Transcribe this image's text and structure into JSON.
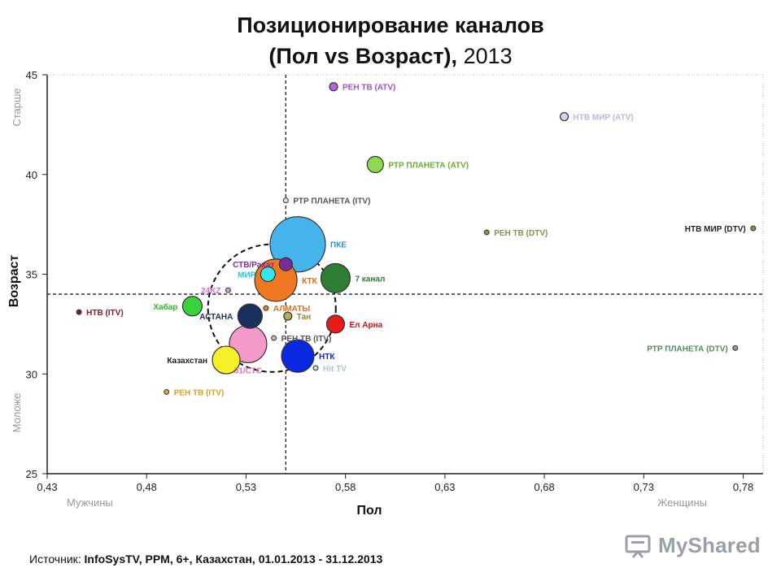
{
  "title": {
    "line1": "Позиционирование каналов",
    "line2": "(Пол vs Возраст),",
    "year": "2013"
  },
  "source": {
    "prefix": "Источник: ",
    "text": "InfoSysTV, PPM, 6+, Казахстан, 01.01.2013 - 31.12.2013"
  },
  "logo": {
    "text": "MyShared",
    "icon": "presentation-board-icon"
  },
  "chart_data": {
    "type": "scatter",
    "subtype": "bubble",
    "xlabel": "Пол",
    "ylabel": "Возраст",
    "xlim": [
      0.43,
      0.79
    ],
    "ylim": [
      25,
      45
    ],
    "xticks": [
      0.43,
      0.48,
      0.53,
      0.58,
      0.63,
      0.68,
      0.73,
      0.78
    ],
    "xtick_labels": [
      "0,43",
      "0,48",
      "0,53",
      "0,58",
      "0,63",
      "0,68",
      "0,73",
      "0,78"
    ],
    "yticks": [
      25,
      30,
      35,
      40,
      45
    ],
    "ytick_labels": [
      "25",
      "30",
      "35",
      "40",
      "45"
    ],
    "x_end_labels": {
      "left": "Мужчины",
      "right": "Женщины"
    },
    "y_end_labels": {
      "top": "Старше",
      "bottom": "Моложе"
    },
    "reference_lines": {
      "x": 0.55,
      "y": 34
    },
    "highlight_circle": {
      "cx": 0.543,
      "cy": 33.3,
      "r": 3.2,
      "style": "dashed"
    },
    "grid": false,
    "points": [
      {
        "label": "РЕН ТВ (ATV)",
        "x": 0.574,
        "y": 44.4,
        "size": 5,
        "color": "#b565d8",
        "label_color": "#a050c8",
        "label_pos": "right"
      },
      {
        "label": "НТВ МИР (ATV)",
        "x": 0.69,
        "y": 42.9,
        "size": 5,
        "color": "#d4d4f0",
        "label_color": "#b8b8e0",
        "label_pos": "right"
      },
      {
        "label": "РТР ПЛАНЕТА (ATV)",
        "x": 0.595,
        "y": 40.5,
        "size": 10,
        "color": "#8fd94e",
        "label_color": "#6aaa30",
        "label_pos": "right"
      },
      {
        "label": "РТР ПЛАНЕТА (ITV)",
        "x": 0.55,
        "y": 38.7,
        "size": 2,
        "color": "#dddddd",
        "label_color": "#555555",
        "label_pos": "right"
      },
      {
        "label": "РЕН ТВ (DTV)",
        "x": 0.651,
        "y": 37.1,
        "size": 3,
        "color": "#8a9050",
        "label_color": "#8a9050",
        "label_pos": "right"
      },
      {
        "label": "НТВ МИР (DTV)",
        "x": 0.785,
        "y": 37.3,
        "size": 3,
        "color": "#8a9050",
        "label_color": "#222222",
        "label_pos": "left"
      },
      {
        "label": "ПКЕ",
        "x": 0.556,
        "y": 36.5,
        "size": 34,
        "color": "#45b4ea",
        "label_color": "#2a8fd0",
        "label_pos": "right"
      },
      {
        "label": "СТВ/Рахат",
        "x": 0.55,
        "y": 35.5,
        "size": 8,
        "color": "#7a2a9a",
        "label_color": "#7a2a9a",
        "label_pos": "left"
      },
      {
        "label": "МИР",
        "x": 0.541,
        "y": 35.0,
        "size": 9,
        "color": "#35e8f0",
        "label_color": "#20c8e0",
        "label_pos": "left"
      },
      {
        "label": "КТК",
        "x": 0.545,
        "y": 34.7,
        "size": 26,
        "color": "#f07820",
        "label_color": "#e06810",
        "label_pos": "right"
      },
      {
        "label": "7 канал",
        "x": 0.575,
        "y": 34.8,
        "size": 18,
        "color": "#2e7d32",
        "label_color": "#2e7d32",
        "label_pos": "right"
      },
      {
        "label": "24KZ",
        "x": 0.521,
        "y": 34.2,
        "size": 2,
        "color": "#d89cd8",
        "label_color": "#d070d0",
        "label_pos": "left"
      },
      {
        "label": "Хабар",
        "x": 0.503,
        "y": 33.4,
        "size": 12,
        "color": "#39d239",
        "label_color": "#2ab82a",
        "label_pos": "left"
      },
      {
        "label": "НТВ (ITV)",
        "x": 0.446,
        "y": 33.1,
        "size": 2,
        "color": "#8b1a1a",
        "label_color": "#8b1a1a",
        "label_pos": "right"
      },
      {
        "label": "АЛМАТЫ",
        "x": 0.54,
        "y": 33.3,
        "size": 2,
        "color": "#f08030",
        "label_color": "#e07020",
        "label_pos": "right"
      },
      {
        "label": "АСТАНА",
        "x": 0.532,
        "y": 32.9,
        "size": 15,
        "color": "#1a3060",
        "label_color": "#1a3060",
        "label_pos": "left"
      },
      {
        "label": "Тан",
        "x": 0.551,
        "y": 32.9,
        "size": 5,
        "color": "#b0b050",
        "label_color": "#8a8a30",
        "label_pos": "right"
      },
      {
        "label": "Ел Арна",
        "x": 0.575,
        "y": 32.5,
        "size": 11,
        "color": "#e61b1b",
        "label_color": "#d01010",
        "label_pos": "right"
      },
      {
        "label": "РЕН ТВ (ITV)",
        "x": 0.544,
        "y": 31.8,
        "size": 2,
        "color": "#bbbbbb",
        "label_color": "#555555",
        "label_pos": "right"
      },
      {
        "label": "31/СТС",
        "x": 0.531,
        "y": 31.5,
        "size": 23,
        "color": "#f49ac8",
        "label_color": "#e070b0",
        "label_pos": "below"
      },
      {
        "label": "НТК",
        "x": 0.556,
        "y": 30.9,
        "size": 20,
        "color": "#0a28e0",
        "label_color": "#0a28e0",
        "label_pos": "right"
      },
      {
        "label": "Hit TV",
        "x": 0.565,
        "y": 30.3,
        "size": 3,
        "color": "#cfd8e6",
        "label_color": "#a8c0e0",
        "label_pos": "right"
      },
      {
        "label": "Казахстан",
        "x": 0.52,
        "y": 30.7,
        "size": 17,
        "color": "#f6ef2a",
        "label_color": "#222222",
        "label_pos": "left"
      },
      {
        "label": "РТР ПЛАНЕТА (DTV)",
        "x": 0.776,
        "y": 31.3,
        "size": 3,
        "color": "#8fa090",
        "label_color": "#558868",
        "label_pos": "left"
      },
      {
        "label": "РЕН ТВ (ITV)",
        "x": 0.49,
        "y": 29.1,
        "size": 2,
        "color": "#f0a030",
        "label_color": "#e0a020",
        "label_pos": "right"
      }
    ]
  }
}
